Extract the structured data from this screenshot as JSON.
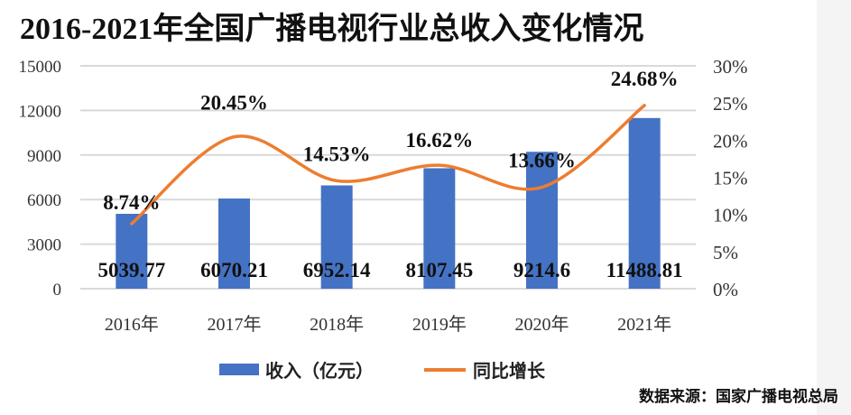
{
  "chart_data": {
    "type": "bar+line",
    "title": "2016-2021年全国广播电视行业总收入变化情况",
    "categories": [
      "2016年",
      "2017年",
      "2018年",
      "2019年",
      "2020年",
      "2021年"
    ],
    "series": [
      {
        "name": "收入（亿元）",
        "type": "bar",
        "axis": "left",
        "color": "#4472c4",
        "values": [
          5039.77,
          6070.21,
          6952.14,
          8107.45,
          9214.6,
          11488.81
        ],
        "labels": [
          "5039.77",
          "6070.21",
          "6952.14",
          "8107.45",
          "9214.6",
          "11488.81"
        ]
      },
      {
        "name": "同比增长",
        "type": "line",
        "axis": "right",
        "color": "#ed7d31",
        "values": [
          8.74,
          20.45,
          14.53,
          16.62,
          13.66,
          24.68
        ],
        "labels": [
          "8.74%",
          "20.45%",
          "14.53%",
          "16.62%",
          "13.66%",
          "24.68%"
        ]
      }
    ],
    "y_left": {
      "range": [
        0,
        15000
      ],
      "ticks": [
        "0",
        "3000",
        "6000",
        "9000",
        "12000",
        "15000"
      ]
    },
    "y_right": {
      "range": [
        0,
        30
      ],
      "ticks": [
        "0%",
        "5%",
        "10%",
        "15%",
        "20%",
        "25%",
        "30%"
      ]
    },
    "grid": true,
    "legend": "bottom"
  },
  "source": "数据来源：国家广播电视总局"
}
